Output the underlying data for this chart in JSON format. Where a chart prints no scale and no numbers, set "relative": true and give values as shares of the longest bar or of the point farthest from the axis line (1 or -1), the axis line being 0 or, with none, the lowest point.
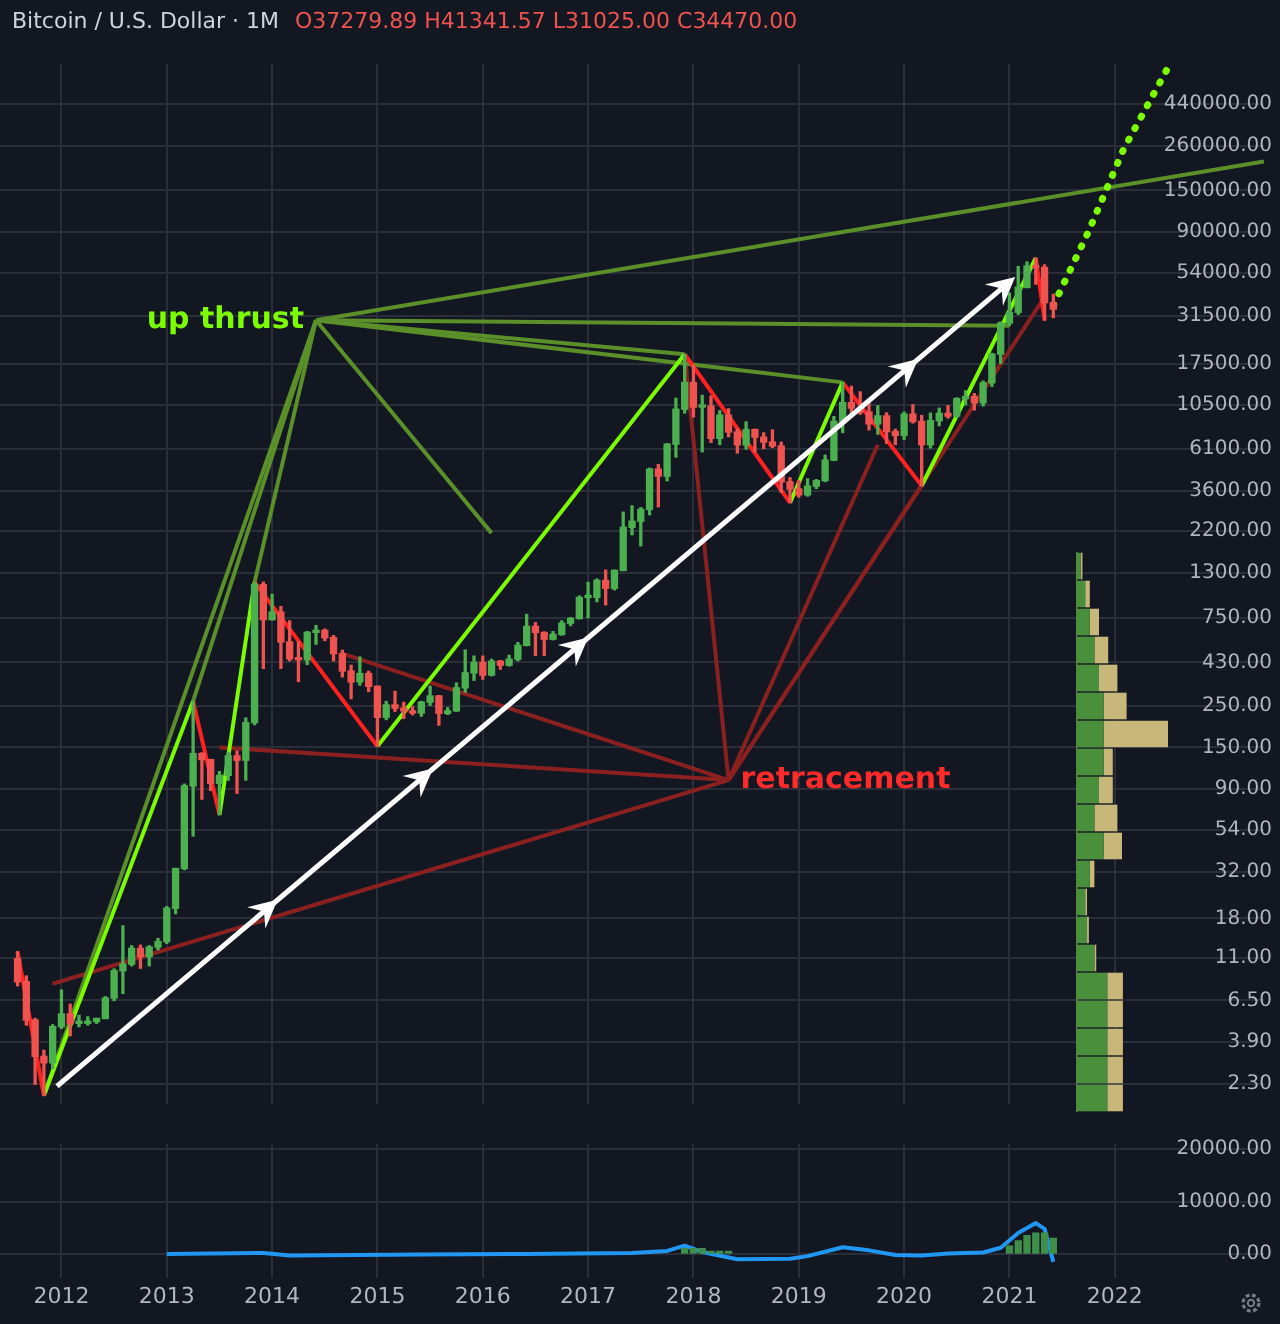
{
  "chart_data": [
    {
      "type": "candlestick",
      "title": "Bitcoin / U.S. Dollar · 1M",
      "annotations": [
        "O37279.89 H41341.57 L31025.00 C34470.00",
        {
          "text": "up thrust",
          "x": "2014-06",
          "y": 30000
        },
        {
          "text": "retracement",
          "x": "2018-05",
          "y": 100
        }
      ],
      "x": [
        "2011-08",
        "2011-09",
        "2011-10",
        "2011-11",
        "2011-12",
        "2012-01",
        "2012-02",
        "2012-03",
        "2012-04",
        "2012-05",
        "2012-06",
        "2012-07",
        "2012-08",
        "2012-09",
        "2012-10",
        "2012-11",
        "2012-12",
        "2013-01",
        "2013-02",
        "2013-03",
        "2013-04",
        "2013-05",
        "2013-06",
        "2013-07",
        "2013-08",
        "2013-09",
        "2013-10",
        "2013-11",
        "2013-12",
        "2014-01",
        "2014-02",
        "2014-03",
        "2014-04",
        "2014-05",
        "2014-06",
        "2014-07",
        "2014-08",
        "2014-09",
        "2014-10",
        "2014-11",
        "2014-12",
        "2015-01",
        "2015-02",
        "2015-03",
        "2015-04",
        "2015-05",
        "2015-06",
        "2015-07",
        "2015-08",
        "2015-09",
        "2015-10",
        "2015-11",
        "2015-12",
        "2016-01",
        "2016-02",
        "2016-03",
        "2016-04",
        "2016-05",
        "2016-06",
        "2016-07",
        "2016-08",
        "2016-09",
        "2016-10",
        "2016-11",
        "2016-12",
        "2017-01",
        "2017-02",
        "2017-03",
        "2017-04",
        "2017-05",
        "2017-06",
        "2017-07",
        "2017-08",
        "2017-09",
        "2017-10",
        "2017-11",
        "2017-12",
        "2018-01",
        "2018-02",
        "2018-03",
        "2018-04",
        "2018-05",
        "2018-06",
        "2018-07",
        "2018-08",
        "2018-09",
        "2018-10",
        "2018-11",
        "2018-12",
        "2019-01",
        "2019-02",
        "2019-03",
        "2019-04",
        "2019-05",
        "2019-06",
        "2019-07",
        "2019-08",
        "2019-09",
        "2019-10",
        "2019-11",
        "2019-12",
        "2020-01",
        "2020-02",
        "2020-03",
        "2020-04",
        "2020-05",
        "2020-06",
        "2020-07",
        "2020-08",
        "2020-09",
        "2020-10",
        "2020-11",
        "2020-12",
        "2021-01",
        "2021-02",
        "2021-03",
        "2021-04",
        "2021-05",
        "2021-06"
      ],
      "ohlc": [
        [
          10.9,
          11.9,
          7.8,
          8.2
        ],
        [
          8.2,
          8.8,
          4.8,
          5.1
        ],
        [
          5.1,
          5.2,
          2.3,
          3.25
        ],
        [
          3.25,
          3.5,
          2.0,
          3.0
        ],
        [
          3.0,
          4.8,
          2.8,
          4.7
        ],
        [
          4.7,
          7.4,
          4.6,
          5.5
        ],
        [
          5.5,
          6.2,
          4.2,
          4.9
        ],
        [
          4.9,
          5.4,
          4.7,
          4.9
        ],
        [
          4.9,
          5.3,
          4.8,
          5.0
        ],
        [
          5.0,
          5.2,
          4.9,
          5.2
        ],
        [
          5.2,
          6.8,
          5.2,
          6.7
        ],
        [
          6.7,
          9.6,
          6.5,
          9.4
        ],
        [
          9.4,
          16.4,
          7.1,
          10.2
        ],
        [
          10.2,
          12.8,
          10.0,
          12.4
        ],
        [
          12.4,
          12.9,
          9.7,
          11.2
        ],
        [
          11.2,
          12.8,
          10.0,
          12.6
        ],
        [
          12.6,
          14.0,
          12.2,
          13.5
        ],
        [
          13.5,
          20.8,
          13.2,
          20.4
        ],
        [
          20.4,
          33.4,
          19.1,
          33.4
        ],
        [
          33.4,
          95,
          33,
          93
        ],
        [
          93,
          266,
          50,
          139
        ],
        [
          139,
          140,
          79,
          129
        ],
        [
          129,
          129,
          88,
          96
        ],
        [
          96,
          111,
          65,
          106
        ],
        [
          106,
          141,
          100,
          135
        ],
        [
          135,
          143,
          85,
          128
        ],
        [
          128,
          216,
          100,
          204
        ],
        [
          204,
          1163,
          199,
          1128
        ],
        [
          1128,
          1163,
          400,
          732
        ],
        [
          732,
          1000,
          730,
          803
        ],
        [
          803,
          860,
          400,
          555
        ],
        [
          555,
          720,
          440,
          450
        ],
        [
          450,
          555,
          340,
          445
        ],
        [
          445,
          630,
          420,
          625
        ],
        [
          625,
          680,
          540,
          640
        ],
        [
          640,
          650,
          565,
          585
        ],
        [
          585,
          600,
          440,
          480
        ],
        [
          480,
          500,
          360,
          387
        ],
        [
          387,
          415,
          275,
          338
        ],
        [
          338,
          460,
          325,
          375
        ],
        [
          375,
          385,
          300,
          320
        ],
        [
          320,
          320,
          152,
          218
        ],
        [
          218,
          265,
          212,
          254
        ],
        [
          254,
          300,
          235,
          244
        ],
        [
          244,
          262,
          215,
          236
        ],
        [
          236,
          248,
          225,
          230
        ],
        [
          230,
          265,
          221,
          263
        ],
        [
          263,
          320,
          253,
          284
        ],
        [
          284,
          285,
          198,
          229
        ],
        [
          229,
          245,
          226,
          236
        ],
        [
          236,
          333,
          235,
          314
        ],
        [
          314,
          502,
          298,
          378
        ],
        [
          378,
          465,
          345,
          430
        ],
        [
          430,
          465,
          350,
          368
        ],
        [
          368,
          447,
          365,
          437
        ],
        [
          437,
          440,
          396,
          416
        ],
        [
          416,
          470,
          412,
          448
        ],
        [
          448,
          550,
          440,
          532
        ],
        [
          532,
          780,
          530,
          673
        ],
        [
          673,
          705,
          470,
          624
        ],
        [
          624,
          627,
          470,
          574
        ],
        [
          574,
          630,
          570,
          609
        ],
        [
          609,
          720,
          605,
          700
        ],
        [
          700,
          750,
          680,
          742
        ],
        [
          742,
          980,
          740,
          964
        ],
        [
          964,
          1160,
          750,
          965
        ],
        [
          965,
          1210,
          915,
          1190
        ],
        [
          1190,
          1350,
          880,
          1080
        ],
        [
          1080,
          1350,
          1060,
          1348
        ],
        [
          1348,
          2770,
          1345,
          2300
        ],
        [
          2300,
          3000,
          2100,
          2480
        ],
        [
          2480,
          2930,
          1830,
          2870
        ],
        [
          2870,
          4780,
          2690,
          4735
        ],
        [
          4735,
          5000,
          2970,
          4340
        ],
        [
          4340,
          6470,
          4100,
          6450
        ],
        [
          6450,
          11400,
          5500,
          9950
        ],
        [
          9950,
          19666,
          9500,
          13850
        ],
        [
          13850,
          17200,
          9050,
          10220
        ],
        [
          10220,
          11800,
          5870,
          10330
        ],
        [
          10330,
          11700,
          6600,
          6930
        ],
        [
          6930,
          9750,
          6430,
          9240
        ],
        [
          9240,
          9990,
          7080,
          7500
        ],
        [
          7500,
          7760,
          5780,
          6390
        ],
        [
          6390,
          8500,
          6070,
          7730
        ],
        [
          7730,
          7750,
          5880,
          7030
        ],
        [
          7030,
          7410,
          6120,
          6625
        ],
        [
          6625,
          7680,
          6200,
          6310
        ],
        [
          6310,
          6600,
          3550,
          4040
        ],
        [
          4040,
          4250,
          3120,
          3700
        ],
        [
          3700,
          4100,
          3350,
          3440
        ],
        [
          3440,
          4190,
          3390,
          3830
        ],
        [
          3830,
          4150,
          3730,
          4100
        ],
        [
          4100,
          5620,
          4060,
          5290
        ],
        [
          5290,
          9070,
          5270,
          8550
        ],
        [
          8550,
          13880,
          7460,
          10800
        ],
        [
          10800,
          13200,
          9070,
          10090
        ],
        [
          10090,
          12330,
          9350,
          9600
        ],
        [
          9600,
          10950,
          7700,
          8300
        ],
        [
          8300,
          10370,
          7300,
          9150
        ],
        [
          9150,
          9500,
          6520,
          7540
        ],
        [
          7540,
          7750,
          6430,
          7190
        ],
        [
          7190,
          9580,
          6860,
          9350
        ],
        [
          9350,
          10500,
          8400,
          8540
        ],
        [
          8540,
          9190,
          3850,
          6410
        ],
        [
          6410,
          9470,
          6160,
          8630
        ],
        [
          8630,
          10070,
          8120,
          9450
        ],
        [
          9450,
          10380,
          8930,
          9140
        ],
        [
          9140,
          11440,
          8990,
          11350
        ],
        [
          11350,
          12480,
          10530,
          11650
        ],
        [
          11650,
          12070,
          9880,
          10780
        ],
        [
          10780,
          14100,
          10380,
          13800
        ],
        [
          13800,
          19850,
          13220,
          19700
        ],
        [
          19700,
          29300,
          17600,
          28990
        ],
        [
          28990,
          41950,
          28130,
          33100
        ],
        [
          33100,
          58350,
          32300,
          45170
        ],
        [
          45170,
          61780,
          44950,
          58800
        ],
        [
          58800,
          64900,
          47000,
          57720
        ],
        [
          57720,
          59500,
          30000,
          37280
        ],
        [
          37279.89,
          41341.57,
          31025.0,
          34470.0
        ]
      ],
      "colors": [
        "#ef5350",
        "#ef5350",
        "#ef5350",
        "#ef5350",
        "#4caf50",
        "#4caf50",
        "#ef5350",
        "#4caf50",
        "#4caf50",
        "#4caf50",
        "#4caf50",
        "#4caf50",
        "#4caf50",
        "#4caf50",
        "#ef5350",
        "#4caf50",
        "#4caf50",
        "#4caf50",
        "#4caf50",
        "#4caf50",
        "#4caf50",
        "#ef5350",
        "#ef5350",
        "#4caf50",
        "#4caf50",
        "#ef5350",
        "#4caf50",
        "#4caf50",
        "#ef5350",
        "#4caf50",
        "#ef5350",
        "#ef5350",
        "#ef5350",
        "#4caf50",
        "#4caf50",
        "#ef5350",
        "#ef5350",
        "#ef5350",
        "#ef5350",
        "#4caf50",
        "#ef5350",
        "#ef5350",
        "#4caf50",
        "#ef5350",
        "#ef5350",
        "#ef5350",
        "#4caf50",
        "#4caf50",
        "#ef5350",
        "#4caf50",
        "#4caf50",
        "#4caf50",
        "#4caf50",
        "#ef5350",
        "#4caf50",
        "#ef5350",
        "#4caf50",
        "#4caf50",
        "#4caf50",
        "#ef5350",
        "#ef5350",
        "#4caf50",
        "#4caf50",
        "#4caf50",
        "#4caf50",
        "#4caf50",
        "#4caf50",
        "#ef5350",
        "#4caf50",
        "#4caf50",
        "#4caf50",
        "#4caf50",
        "#4caf50",
        "#ef5350",
        "#4caf50",
        "#4caf50",
        "#4caf50",
        "#ef5350",
        "#4caf50",
        "#ef5350",
        "#4caf50",
        "#ef5350",
        "#ef5350",
        "#4caf50",
        "#ef5350",
        "#ef5350",
        "#ef5350",
        "#ef5350",
        "#ef5350",
        "#ef5350",
        "#4caf50",
        "#4caf50",
        "#4caf50",
        "#4caf50",
        "#4caf50",
        "#ef5350",
        "#ef5350",
        "#ef5350",
        "#4caf50",
        "#ef5350",
        "#ef5350",
        "#4caf50",
        "#ef5350",
        "#ef5350",
        "#4caf50",
        "#4caf50",
        "#ef5350",
        "#4caf50",
        "#4caf50",
        "#ef5350",
        "#4caf50",
        "#4caf50",
        "#4caf50",
        "#4caf50",
        "#4caf50",
        "#4caf50",
        "#ef5350",
        "#ef5350",
        "#ef5350"
      ],
      "series": [
        {
          "type": "line",
          "color": "#ff2020",
          "x": [
            "2011-08",
            "2011-11"
          ],
          "values": [
            11.9,
            2.0
          ]
        },
        {
          "type": "line",
          "color": "#7cfc00",
          "x": [
            "2011-11",
            "2013-04"
          ],
          "values": [
            2.0,
            266
          ]
        },
        {
          "type": "line",
          "color": "#ff2020",
          "x": [
            "2013-04",
            "2013-07"
          ],
          "values": [
            266,
            65
          ]
        },
        {
          "type": "line",
          "color": "#7cfc00",
          "x": [
            "2013-07",
            "2013-11"
          ],
          "values": [
            65,
            1163
          ]
        },
        {
          "type": "line",
          "color": "#ff2020",
          "x": [
            "2013-11",
            "2015-01"
          ],
          "values": [
            1163,
            152
          ]
        },
        {
          "type": "line",
          "color": "#7cfc00",
          "x": [
            "2015-01",
            "2017-12"
          ],
          "values": [
            152,
            19666
          ]
        },
        {
          "type": "line",
          "color": "#ff2020",
          "x": [
            "2017-12",
            "2018-12"
          ],
          "values": [
            19666,
            3120
          ]
        },
        {
          "type": "line",
          "color": "#7cfc00",
          "x": [
            "2018-12",
            "2019-06"
          ],
          "values": [
            3120,
            13880
          ]
        },
        {
          "type": "line",
          "color": "#ff2020",
          "x": [
            "2019-06",
            "2020-03"
          ],
          "values": [
            13880,
            3850
          ]
        },
        {
          "type": "line",
          "color": "#7cfc00",
          "x": [
            "2020-03",
            "2021-04"
          ],
          "values": [
            3850,
            64900
          ]
        },
        {
          "type": "line",
          "color": "#ff2020",
          "x": [
            "2021-04",
            "2021-05"
          ],
          "values": [
            64900,
            30000
          ]
        },
        {
          "type": "line",
          "color": "#7cfc00",
          "line_style": "dotted",
          "x": [
            "2021-06",
            "2021-10",
            "2022-02",
            "2022-07"
          ],
          "values": [
            36000,
            90000,
            250000,
            680000
          ]
        },
        {
          "type": "line",
          "color": "#5a8f29",
          "x": [
            "2014-06",
            "2011-11"
          ],
          "values": [
            30000,
            2.0
          ]
        },
        {
          "type": "line",
          "color": "#5a8f29",
          "x": [
            "2014-06",
            "2013-04"
          ],
          "values": [
            30000,
            266
          ]
        },
        {
          "type": "line",
          "color": "#5a8f29",
          "x": [
            "2014-06",
            "2013-11"
          ],
          "values": [
            30000,
            1163
          ]
        },
        {
          "type": "line",
          "color": "#5a8f29",
          "x": [
            "2014-06",
            "2016-02"
          ],
          "values": [
            30000,
            2140
          ]
        },
        {
          "type": "line",
          "color": "#5a8f29",
          "x": [
            "2014-06",
            "2017-12"
          ],
          "values": [
            30000,
            19666
          ]
        },
        {
          "type": "line",
          "color": "#5a8f29",
          "x": [
            "2014-06",
            "2019-06"
          ],
          "values": [
            30000,
            13880
          ]
        },
        {
          "type": "line",
          "color": "#5a8f29",
          "x": [
            "2014-06",
            "2021-01"
          ],
          "values": [
            30000,
            28000
          ]
        },
        {
          "type": "line",
          "color": "#5a8f29",
          "x": [
            "2014-06",
            "2023-06"
          ],
          "values": [
            30000,
            215000
          ]
        },
        {
          "type": "line",
          "color": "#8b2020",
          "x": [
            "2018-05",
            "2011-12"
          ],
          "values": [
            100,
            8
          ]
        },
        {
          "type": "line",
          "color": "#8b2020",
          "x": [
            "2018-05",
            "2013-07"
          ],
          "values": [
            100,
            150
          ]
        },
        {
          "type": "line",
          "color": "#8b2020",
          "x": [
            "2018-05",
            "2014-09"
          ],
          "values": [
            100,
            480
          ]
        },
        {
          "type": "line",
          "color": "#8b2020",
          "x": [
            "2018-05",
            "2017-12"
          ],
          "values": [
            100,
            19666
          ]
        },
        {
          "type": "line",
          "color": "#8b2020",
          "x": [
            "2018-05",
            "2019-10"
          ],
          "values": [
            100,
            6400
          ]
        },
        {
          "type": "line",
          "color": "#8b2020",
          "x": [
            "2018-05",
            "2020-03"
          ],
          "values": [
            100,
            3850
          ]
        },
        {
          "type": "line",
          "color": "#8b2020",
          "x": [
            "2018-05",
            "2021-05"
          ],
          "values": [
            100,
            40000
          ]
        }
      ],
      "xlim": [
        "2011-06",
        "2023-06"
      ],
      "xticks": [
        "2012",
        "2013",
        "2014",
        "2015",
        "2016",
        "2017",
        "2018",
        "2019",
        "2020",
        "2021",
        "2022"
      ],
      "ylim": [
        1.8,
        720000
      ],
      "yticks": [
        {
          "value": 2.3,
          "label": "2.30"
        },
        {
          "value": 3.9,
          "label": "3.90"
        },
        {
          "value": 6.5,
          "label": "6.50"
        },
        {
          "value": 11,
          "label": "11.00"
        },
        {
          "value": 18,
          "label": "18.00"
        },
        {
          "value": 32,
          "label": "32.00"
        },
        {
          "value": 54,
          "label": "54.00"
        },
        {
          "value": 90,
          "label": "90.00"
        },
        {
          "value": 150,
          "label": "150.00"
        },
        {
          "value": 250,
          "label": "250.00"
        },
        {
          "value": 430,
          "label": "430.00"
        },
        {
          "value": 750,
          "label": "750.00"
        },
        {
          "value": 1300,
          "label": "1300.00"
        },
        {
          "value": 2200,
          "label": "2200.00"
        },
        {
          "value": 3600,
          "label": "3600.00"
        },
        {
          "value": 6100,
          "label": "6100.00"
        },
        {
          "value": 10500,
          "label": "10500.00"
        },
        {
          "value": 17500,
          "label": "17500.00"
        },
        {
          "value": 31500,
          "label": "31500.00"
        },
        {
          "value": 54000,
          "label": "54000.00"
        },
        {
          "value": 90000,
          "label": "90000.00"
        },
        {
          "value": 150000,
          "label": "150000.00"
        },
        {
          "value": 260000,
          "label": "260000.00"
        },
        {
          "value": 440000,
          "label": "440000.00"
        }
      ],
      "log": true,
      "grid": true,
      "tick_labels": "y"
    },
    {
      "type": "line",
      "series": [
        {
          "type": "line",
          "color": "#2196f3",
          "x": [
            "2013-01",
            "2013-12",
            "2014-03",
            "2015-06",
            "2016-06",
            "2017-06",
            "2017-10",
            "2017-12",
            "2018-02",
            "2018-06",
            "2018-12",
            "2019-02",
            "2019-06",
            "2019-09",
            "2019-12",
            "2020-03",
            "2020-06",
            "2020-10",
            "2020-12",
            "2021-02",
            "2021-04",
            "2021-05",
            "2021-06"
          ],
          "values": [
            0,
            200,
            -300,
            -100,
            0,
            200,
            600,
            1600,
            400,
            -1000,
            -900,
            -400,
            1300,
            700,
            -200,
            -300,
            100,
            300,
            1200,
            4000,
            5900,
            4800,
            -1500
          ]
        },
        {
          "type": "bar",
          "color": "#3f8f4a",
          "x": [
            "2017-12",
            "2018-01",
            "2018-02",
            "2018-03",
            "2018-04",
            "2018-05",
            "2021-01",
            "2021-02",
            "2021-03",
            "2021-04",
            "2021-05",
            "2021-06"
          ],
          "values": [
            1000,
            1000,
            1000,
            500,
            500,
            500,
            1500,
            2500,
            3500,
            4000,
            4000,
            3000
          ]
        }
      ],
      "xlim": [
        "2011-06",
        "2023-06"
      ],
      "xticks": [
        "2012",
        "2013",
        "2014",
        "2015",
        "2016",
        "2017",
        "2018",
        "2019",
        "2020",
        "2021",
        "2022"
      ],
      "ylim": [
        -4500,
        21000
      ],
      "yticks": [
        {
          "value": 0,
          "label": "0.00"
        },
        {
          "value": 10000,
          "label": "10000.00"
        },
        {
          "value": 20000,
          "label": "20000.00"
        }
      ],
      "grid": true
    },
    {
      "type": "bar",
      "orientation": "horizontal",
      "stacked": true,
      "relative": true,
      "categories": [
        null,
        null,
        null,
        null,
        null,
        null,
        null,
        null,
        null,
        null,
        null,
        null,
        null,
        null,
        null,
        null,
        null,
        null,
        null,
        null
      ],
      "series": [
        {
          "color": "#4a8f3c",
          "values": [
            0.05,
            0.1,
            0.15,
            0.2,
            0.25,
            0.3,
            0.3,
            0.3,
            0.25,
            0.2,
            0.3,
            0.15,
            0.1,
            0.12,
            0.2,
            0.34,
            0.34,
            0.34,
            0.34,
            0.34
          ]
        },
        {
          "color": "#c8b77a",
          "values": [
            0.02,
            0.05,
            0.1,
            0.15,
            0.2,
            0.25,
            0.7,
            0.1,
            0.15,
            0.25,
            0.2,
            0.05,
            0.02,
            0.02,
            0.02,
            0.17,
            0.17,
            0.17,
            0.17,
            0.17
          ]
        }
      ]
    }
  ]
}
